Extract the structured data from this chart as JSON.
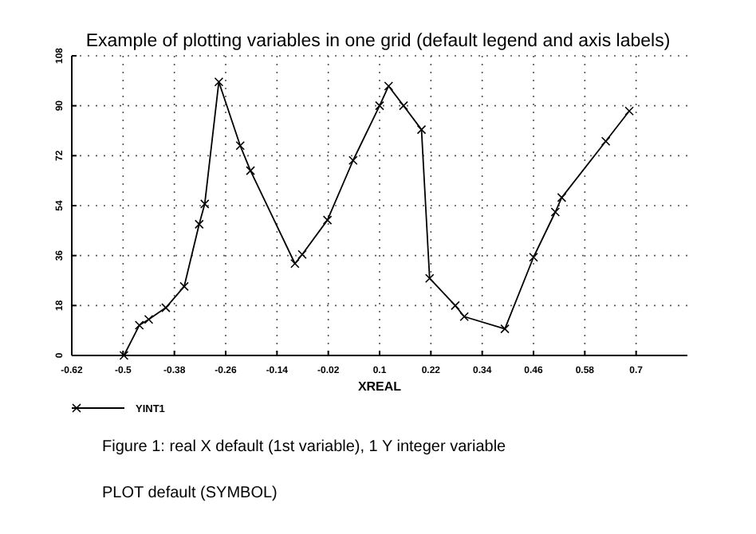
{
  "chart_data": {
    "type": "line",
    "title": "Example of plotting variables in one grid (default legend and axis labels)",
    "xlabel": "XREAL",
    "x": [
      -0.498,
      -0.462,
      -0.44,
      -0.4,
      -0.357,
      -0.322,
      -0.309,
      -0.276,
      -0.226,
      -0.202,
      -0.098,
      -0.081,
      -0.022,
      0.038,
      0.1,
      0.121,
      0.156,
      0.198,
      0.217,
      0.277,
      0.298,
      0.393,
      0.46,
      0.511,
      0.526,
      0.629,
      0.684
    ],
    "series": [
      {
        "name": "YINT1",
        "color": "#000000",
        "values": [
          0,
          10.9,
          13,
          17.2,
          24.9,
          47.3,
          54.6,
          98.6,
          75.6,
          66.6,
          33.1,
          36.4,
          48.8,
          70.3,
          90,
          97.1,
          90,
          81.4,
          27.8,
          18,
          14,
          9.6,
          35.4,
          51.7,
          56.9,
          77.2,
          88.1
        ]
      }
    ],
    "xlim": [
      -0.62,
      0.82
    ],
    "xticks": [
      -0.62,
      -0.5,
      -0.38,
      -0.26,
      -0.14,
      -0.02,
      0.1,
      0.22,
      0.34,
      0.46,
      0.58,
      0.7
    ],
    "ylim": [
      0,
      108
    ],
    "yticks": [
      0,
      18,
      36,
      54,
      72,
      90,
      108
    ],
    "grid": true,
    "legend": "bottom left",
    "marker": "cross",
    "line_style": "solid",
    "annotations": [
      "Figure 1: real X default (1st variable), 1 Y integer variable",
      "PLOT default (SYMBOL)"
    ]
  }
}
